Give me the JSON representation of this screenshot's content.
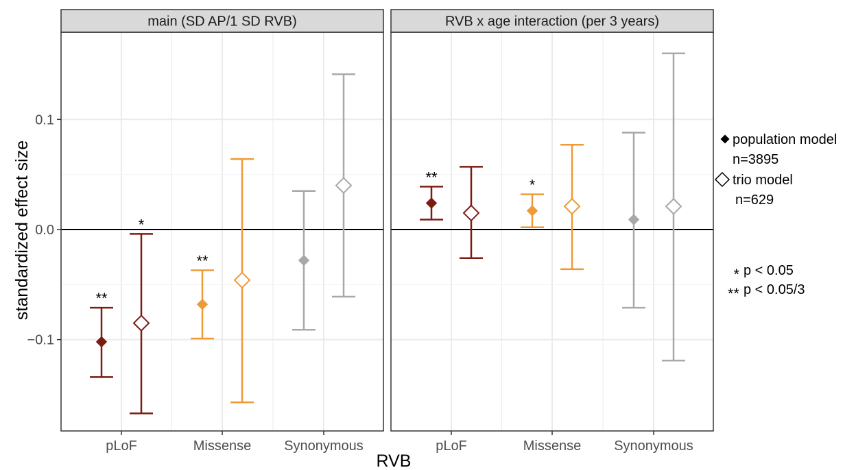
{
  "chart_data": {
    "type": "scatter",
    "subtype": "point-range with error bars, faceted",
    "xlabel": "RVB",
    "ylabel": "standardized effect size",
    "categories": [
      "pLoF",
      "Missense",
      "Synonymous"
    ],
    "ylim": [
      -0.185,
      0.18
    ],
    "yticks": [
      -0.1,
      0.0,
      0.1
    ],
    "ytick_labels": [
      "−0.1",
      "0.0",
      "0.1"
    ],
    "grid": true,
    "zero_line": 0,
    "category_colors": {
      "pLoF": "#7b1c12",
      "Missense": "#ef9a35",
      "Synonymous": "#a8a8a8"
    },
    "legend_position": "right",
    "legend": {
      "models": [
        {
          "model": "population",
          "marker": "filled-diamond",
          "label_line1": "population model",
          "label_line2": "n=3895"
        },
        {
          "model": "trio",
          "marker": "open-diamond",
          "label_line1": "trio model",
          "label_line2": "n=629"
        }
      ],
      "significance": [
        {
          "symbol": "*",
          "label": "p < 0.05"
        },
        {
          "symbol": "**",
          "label": "p < 0.05/3"
        }
      ]
    },
    "panels": [
      {
        "title": "main (SD AP/1 SD RVB)",
        "points": [
          {
            "category": "pLoF",
            "model": "population",
            "estimate": -0.102,
            "lower": -0.134,
            "upper": -0.071,
            "sig": "**"
          },
          {
            "category": "pLoF",
            "model": "trio",
            "estimate": -0.085,
            "lower": -0.167,
            "upper": -0.004,
            "sig": "*"
          },
          {
            "category": "Missense",
            "model": "population",
            "estimate": -0.068,
            "lower": -0.099,
            "upper": -0.037,
            "sig": "**"
          },
          {
            "category": "Missense",
            "model": "trio",
            "estimate": -0.046,
            "lower": -0.157,
            "upper": 0.064,
            "sig": ""
          },
          {
            "category": "Synonymous",
            "model": "population",
            "estimate": -0.028,
            "lower": -0.091,
            "upper": 0.035,
            "sig": ""
          },
          {
            "category": "Synonymous",
            "model": "trio",
            "estimate": 0.04,
            "lower": -0.061,
            "upper": 0.141,
            "sig": ""
          }
        ]
      },
      {
        "title": "RVB x age interaction (per 3 years)",
        "points": [
          {
            "category": "pLoF",
            "model": "population",
            "estimate": 0.024,
            "lower": 0.009,
            "upper": 0.039,
            "sig": "**"
          },
          {
            "category": "pLoF",
            "model": "trio",
            "estimate": 0.015,
            "lower": -0.026,
            "upper": 0.057,
            "sig": ""
          },
          {
            "category": "Missense",
            "model": "population",
            "estimate": 0.017,
            "lower": 0.002,
            "upper": 0.032,
            "sig": "*"
          },
          {
            "category": "Missense",
            "model": "trio",
            "estimate": 0.021,
            "lower": -0.036,
            "upper": 0.077,
            "sig": ""
          },
          {
            "category": "Synonymous",
            "model": "population",
            "estimate": 0.009,
            "lower": -0.071,
            "upper": 0.088,
            "sig": ""
          },
          {
            "category": "Synonymous",
            "model": "trio",
            "estimate": 0.021,
            "lower": -0.119,
            "upper": 0.16,
            "sig": ""
          }
        ]
      }
    ]
  }
}
